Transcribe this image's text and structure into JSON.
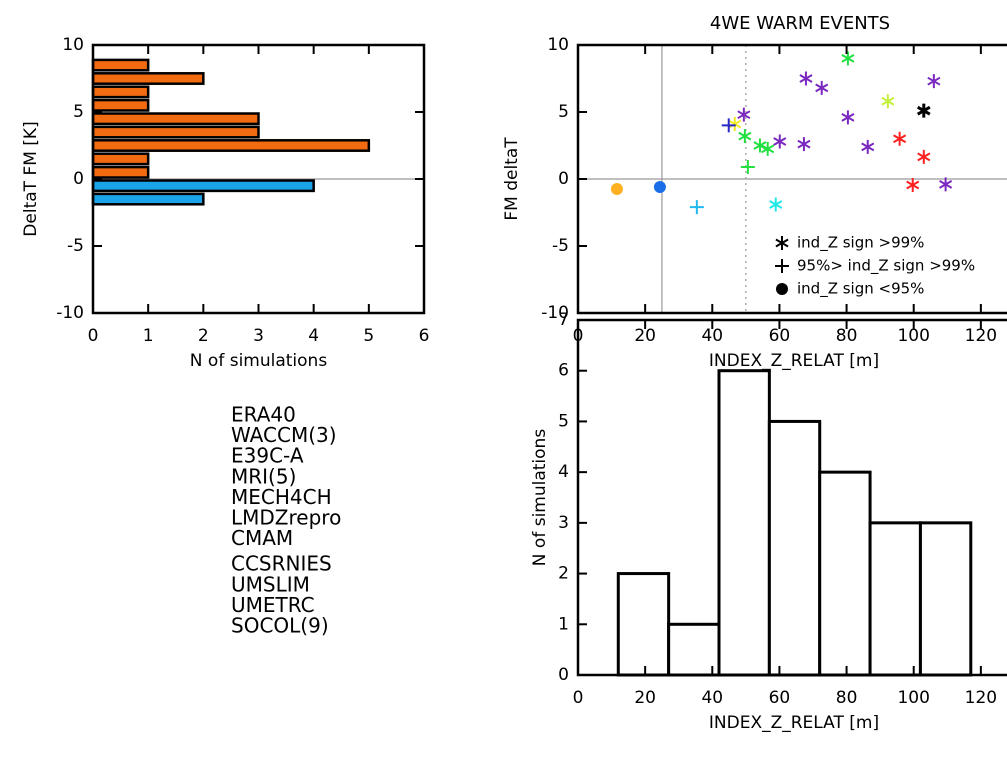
{
  "chart_data": [
    {
      "type": "histogram",
      "orientation": "horizontal",
      "bins": [
        -2,
        -1,
        0,
        1,
        2,
        3,
        4,
        5,
        6,
        7,
        8,
        9
      ],
      "values": [
        2,
        4,
        1,
        1,
        5,
        3,
        3,
        1,
        1,
        2,
        1
      ],
      "colors": [
        "#1aa3e8",
        "#1aa3e8",
        "#f26b10",
        "#f26b10",
        "#f26b10",
        "#f26b10",
        "#f26b10",
        "#f26b10",
        "#f26b10",
        "#f26b10",
        "#f26b10"
      ],
      "xlabel": "N of simulations",
      "ylabel": "DeltaT FM [K]",
      "xlim": [
        0,
        6
      ],
      "xticks": [
        0,
        1,
        2,
        3,
        4,
        5,
        6
      ],
      "ylim": [
        -10,
        10
      ],
      "yticks": [
        -10,
        -5,
        0,
        5,
        10
      ],
      "hlines": [
        0
      ]
    },
    {
      "type": "scatter",
      "title": "4WE WARM EVENTS",
      "xlabel": "INDEX_Z_RELAT [m]",
      "ylabel": "FM deltaT",
      "xlim": [
        0,
        140
      ],
      "xticks": [
        0,
        20,
        40,
        60,
        80,
        100,
        120
      ],
      "ylim": [
        -10,
        10
      ],
      "yticks": [
        -10,
        -5,
        0,
        5,
        10
      ],
      "vlines": [
        {
          "value": 25,
          "style": "solid"
        },
        {
          "value": 50,
          "style": "dotted"
        }
      ],
      "hlines": [
        0
      ],
      "series": [
        {
          "name": "ERA40",
          "color": "#000000",
          "x": [
            103
          ],
          "values": [
            5.1
          ],
          "markers": [
            "asterisk"
          ]
        },
        {
          "name": "WACCM(3)",
          "color": "#ff2020",
          "x": [
            95.8,
            103,
            99.7
          ],
          "values": [
            3.0,
            1.65,
            -0.45
          ],
          "markers": [
            "asterisk",
            "asterisk",
            "asterisk"
          ]
        },
        {
          "name": "E39C-A",
          "color": "#c4f03c",
          "x": [
            92.3
          ],
          "values": [
            5.8
          ],
          "markers": [
            "asterisk"
          ]
        },
        {
          "name": "MRI(5)",
          "color": "#22e040",
          "x": [
            80.4,
            49.7,
            54.2,
            56.5,
            50.6
          ],
          "values": [
            9.0,
            3.2,
            2.5,
            2.25,
            0.9
          ],
          "markers": [
            "asterisk",
            "asterisk",
            "asterisk",
            "asterisk",
            "plus"
          ]
        },
        {
          "name": "MECH4CH",
          "color": "#f0e820",
          "x": [
            46.7
          ],
          "values": [
            4.1
          ],
          "markers": [
            "asterisk"
          ]
        },
        {
          "name": "LMDZrepro",
          "color": "#ffb020",
          "x": [
            11.6
          ],
          "values": [
            -0.75
          ],
          "markers": [
            "dot"
          ]
        },
        {
          "name": "CMAM",
          "color": "#20e8e8",
          "x": [
            58.9
          ],
          "values": [
            -1.9
          ],
          "markers": [
            "asterisk"
          ]
        },
        {
          "name": "CCSRNIES",
          "color": "#20b8f0",
          "x": [
            35.4
          ],
          "values": [
            -2.1
          ],
          "markers": [
            "plus"
          ]
        },
        {
          "name": "UMSLIM",
          "color": "#1c6ee8",
          "x": [
            24.4
          ],
          "values": [
            -0.6
          ],
          "markers": [
            "dot"
          ]
        },
        {
          "name": "UMETRC",
          "color": "#2828c8",
          "x": [
            44.9
          ],
          "values": [
            4.0
          ],
          "markers": [
            "plus"
          ]
        },
        {
          "name": "SOCOL(9)",
          "color": "#7a28c0",
          "x": [
            49.4,
            60.1,
            67.3,
            67.9,
            72.6,
            80.4,
            86.3,
            106,
            109.5
          ],
          "values": [
            4.8,
            2.8,
            2.6,
            7.5,
            6.8,
            4.6,
            2.4,
            7.3,
            -0.4
          ],
          "markers": [
            "asterisk",
            "asterisk",
            "asterisk",
            "asterisk",
            "asterisk",
            "asterisk",
            "asterisk",
            "asterisk",
            "asterisk"
          ]
        }
      ],
      "marker_legend": [
        {
          "marker": "asterisk",
          "label": "ind_Z sign >99%"
        },
        {
          "marker": "plus",
          "label": "95%> ind_Z sign >99%"
        },
        {
          "marker": "dot",
          "label": "ind_Z sign <95%"
        }
      ]
    },
    {
      "type": "histogram",
      "orientation": "vertical",
      "bins": [
        12,
        27,
        42,
        57,
        72,
        87,
        102,
        117
      ],
      "values": [
        2,
        1,
        6,
        5,
        4,
        3,
        3
      ],
      "color": "#ffffff",
      "xlabel": "INDEX_Z_RELAT [m]",
      "ylabel": "N of simulations",
      "xlim": [
        0,
        140
      ],
      "xticks": [
        0,
        20,
        40,
        60,
        80,
        100,
        120
      ],
      "ylim": [
        0,
        7
      ],
      "yticks": [
        0,
        1,
        2,
        3,
        4,
        5,
        6,
        7
      ]
    }
  ]
}
